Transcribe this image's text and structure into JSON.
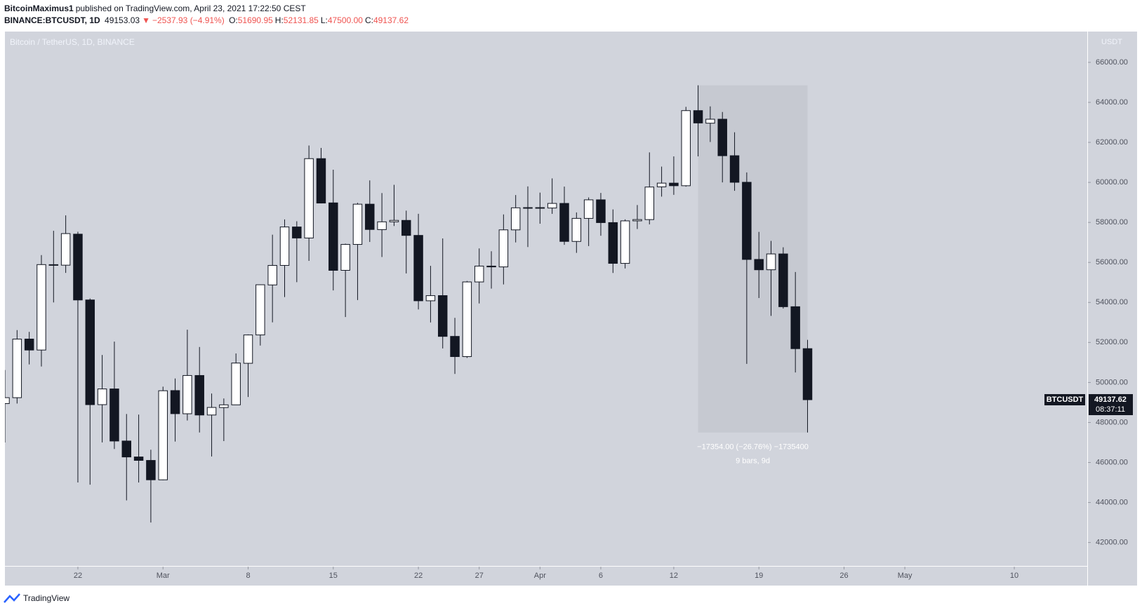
{
  "header": {
    "author": "BitcoinMaximus1",
    "published": "published on TradingView.com, April 23, 2021 17:22:50 CEST",
    "symbol": "BINANCE:BTCUSDT, 1D",
    "last": "49153.03",
    "arrow": "▼",
    "change": "−2537.93 (−4.91%)",
    "ohlc": [
      {
        "label": "O:",
        "value": "51690.95"
      },
      {
        "label": "H:",
        "value": "52131.85"
      },
      {
        "label": "L:",
        "value": "47500.00"
      },
      {
        "label": "C:",
        "value": "49137.62"
      }
    ]
  },
  "chart_data": {
    "type": "candlestick",
    "title": "Bitcoin / TetherUS, 1D, BINANCE",
    "y_unit": "USDT",
    "symbol_label": "BTCUSDT",
    "countdown": "08:37:11",
    "up_color": "#ffffff",
    "down_color": "#131722",
    "x": [
      "2021-02-16",
      "2021-02-17",
      "2021-02-18",
      "2021-02-19",
      "2021-02-20",
      "2021-02-21",
      "2021-02-22",
      "2021-02-23",
      "2021-02-24",
      "2021-02-25",
      "2021-02-26",
      "2021-02-27",
      "2021-02-28",
      "2021-03-01",
      "2021-03-02",
      "2021-03-03",
      "2021-03-04",
      "2021-03-05",
      "2021-03-06",
      "2021-03-07",
      "2021-03-08",
      "2021-03-09",
      "2021-03-10",
      "2021-03-11",
      "2021-03-12",
      "2021-03-13",
      "2021-03-14",
      "2021-03-15",
      "2021-03-16",
      "2021-03-17",
      "2021-03-18",
      "2021-03-19",
      "2021-03-20",
      "2021-03-21",
      "2021-03-22",
      "2021-03-23",
      "2021-03-24",
      "2021-03-25",
      "2021-03-26",
      "2021-03-27",
      "2021-03-28",
      "2021-03-29",
      "2021-03-30",
      "2021-03-31",
      "2021-04-01",
      "2021-04-02",
      "2021-04-03",
      "2021-04-04",
      "2021-04-05",
      "2021-04-06",
      "2021-04-07",
      "2021-04-08",
      "2021-04-09",
      "2021-04-10",
      "2021-04-11",
      "2021-04-12",
      "2021-04-13",
      "2021-04-14",
      "2021-04-15",
      "2021-04-16",
      "2021-04-17",
      "2021-04-18",
      "2021-04-19",
      "2021-04-20",
      "2021-04-21",
      "2021-04-22",
      "2021-04-23"
    ],
    "open": [
      48946,
      49240,
      52170,
      51621,
      55890,
      55863,
      57413,
      54124,
      48891,
      49677,
      47073,
      46277,
      46103,
      45134,
      49595,
      48436,
      50349,
      48374,
      48747,
      48882,
      50959,
      52376,
      54875,
      55851,
      57773,
      57221,
      61188,
      58976,
      55605,
      56900,
      58912,
      57641,
      58030,
      58101,
      57351,
      54083,
      54342,
      52303,
      51293,
      55025,
      55817,
      55777,
      57628,
      58730,
      58741,
      58720,
      58950,
      57051,
      58202,
      59129,
      57991,
      55953,
      58077,
      58142,
      59778,
      59964,
      59834,
      63589,
      62959,
      63159,
      61334,
      60006,
      56150,
      55634,
      56425,
      53787,
      51690.95
    ],
    "high": [
      50623,
      52618,
      52530,
      56369,
      57582,
      58352,
      57534,
      54200,
      51374,
      52041,
      48424,
      48395,
      46638,
      49790,
      50200,
      52640,
      51773,
      49448,
      49200,
      51450,
      52402,
      54895,
      57387,
      58150,
      58058,
      61844,
      61724,
      60633,
      56938,
      58980,
      60100,
      59468,
      59880,
      58589,
      58430,
      55830,
      57200,
      53230,
      55073,
      56700,
      56559,
      58400,
      59368,
      59800,
      59490,
      60200,
      59791,
      58500,
      59250,
      59474,
      58650,
      58153,
      58869,
      61500,
      60790,
      61300,
      63777,
      64854,
      63800,
      63520,
      62506,
      60499,
      57526,
      57076,
      56757,
      55521,
      52131.85
    ],
    "low": [
      47000,
      48947,
      50902,
      50800,
      54000,
      55477,
      45000,
      44892,
      47003,
      46674,
      44106,
      45000,
      43000,
      45115,
      47047,
      48100,
      47500,
      46300,
      47070,
      48882,
      49274,
      51845,
      53005,
      54269,
      55013,
      56078,
      58950,
      54600,
      53271,
      54120,
      57023,
      56270,
      57820,
      55450,
      53650,
      53000,
      51700,
      50427,
      51225,
      53950,
      54691,
      54900,
      57000,
      56769,
      57935,
      58428,
      56880,
      56478,
      56817,
      57333,
      55473,
      55700,
      57670,
      57902,
      59289,
      59378,
      59788,
      61301,
      62020,
      60000,
      59580,
      50931,
      54221,
      53329,
      53696,
      50500,
      47500
    ],
    "close": [
      49240,
      52168,
      51621,
      55892,
      55862,
      57442,
      54124,
      48891,
      49677,
      47073,
      46277,
      46106,
      45135,
      49587,
      48440,
      50349,
      48374,
      48751,
      48882,
      50971,
      52375,
      54884,
      55851,
      57773,
      57221,
      61188,
      58968,
      55605,
      56900,
      58912,
      57648,
      58030,
      58102,
      57351,
      54083,
      54340,
      52303,
      51293,
      55025,
      55817,
      55777,
      57628,
      58730,
      58741,
      58720,
      58950,
      57051,
      58202,
      59129,
      57991,
      55954,
      58077,
      58142,
      59769,
      59964,
      59834,
      63588,
      62971,
      63159,
      61334,
      60006,
      56150,
      55633,
      56425,
      53787,
      51690,
      49137.62
    ],
    "xlim": [
      "2021-02-16",
      "2021-05-16"
    ],
    "xticks": [
      {
        "value": "2021-02-22",
        "label": "22"
      },
      {
        "value": "2021-03-01",
        "label": "Mar"
      },
      {
        "value": "2021-03-08",
        "label": "8"
      },
      {
        "value": "2021-03-15",
        "label": "15"
      },
      {
        "value": "2021-03-22",
        "label": "22"
      },
      {
        "value": "2021-03-27",
        "label": "27"
      },
      {
        "value": "2021-04-01",
        "label": "Apr"
      },
      {
        "value": "2021-04-06",
        "label": "6"
      },
      {
        "value": "2021-04-12",
        "label": "12"
      },
      {
        "value": "2021-04-19",
        "label": "19"
      },
      {
        "value": "2021-04-26",
        "label": "26"
      },
      {
        "value": "2021-05-01",
        "label": "May"
      },
      {
        "value": "2021-05-10",
        "label": "10"
      }
    ],
    "ylim": [
      40830,
      67540
    ],
    "yticks": [
      {
        "value": 42000,
        "label": "42000.00"
      },
      {
        "value": 44000,
        "label": "44000.00"
      },
      {
        "value": 46000,
        "label": "46000.00"
      },
      {
        "value": 48000,
        "label": "48000.00"
      },
      {
        "value": 50000,
        "label": "50000.00"
      },
      {
        "value": 52000,
        "label": "52000.00"
      },
      {
        "value": 54000,
        "label": "54000.00"
      },
      {
        "value": 56000,
        "label": "56000.00"
      },
      {
        "value": 58000,
        "label": "58000.00"
      },
      {
        "value": 60000,
        "label": "60000.00"
      },
      {
        "value": 62000,
        "label": "62000.00"
      },
      {
        "value": 64000,
        "label": "64000.00"
      },
      {
        "value": 66000,
        "label": "66000.00"
      }
    ],
    "measure": {
      "from": "2021-04-14",
      "to": "2021-04-23",
      "change_label": "−17354.00 (−26.76%) −1735400",
      "bars_label": "9 bars, 9d"
    }
  },
  "footer": {
    "brand": "TradingView"
  }
}
